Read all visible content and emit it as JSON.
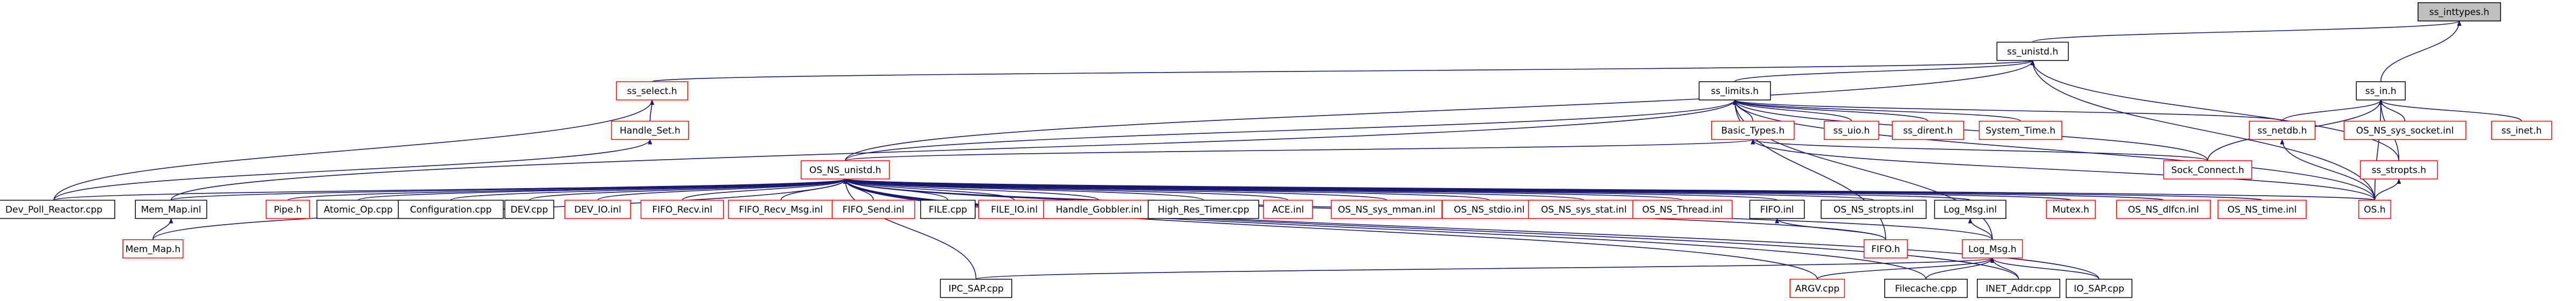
{
  "nodes": [
    {
      "label": "ss_inttypes.h"
    },
    {
      "label": "ss_unistd.h"
    },
    {
      "label": "ss_in.h"
    },
    {
      "label": "ss_select.h"
    },
    {
      "label": "ss_limits.h"
    },
    {
      "label": "Handle_Set.h"
    },
    {
      "label": "Basic_Types.h"
    },
    {
      "label": "ss_uio.h"
    },
    {
      "label": "ss_dirent.h"
    },
    {
      "label": "System_Time.h"
    },
    {
      "label": "ss_netdb.h"
    },
    {
      "label": "OS_NS_sys_socket.inl"
    },
    {
      "label": "ss_inet.h"
    },
    {
      "label": "OS_NS_unistd.h"
    },
    {
      "label": "Sock_Connect.h"
    },
    {
      "label": "ss_stropts.h"
    },
    {
      "label": "Dev_Poll_Reactor.cpp"
    },
    {
      "label": "Mem_Map.inl"
    },
    {
      "label": "Pipe.h"
    },
    {
      "label": "Atomic_Op.cpp"
    },
    {
      "label": "Configuration.cpp"
    },
    {
      "label": "DEV.cpp"
    },
    {
      "label": "DEV_IO.inl"
    },
    {
      "label": "FIFO_Recv.inl"
    },
    {
      "label": "FIFO_Recv_Msg.inl"
    },
    {
      "label": "FIFO_Send.inl"
    },
    {
      "label": "FILE.cpp"
    },
    {
      "label": "FILE_IO.inl"
    },
    {
      "label": "Handle_Gobbler.inl"
    },
    {
      "label": "High_Res_Timer.cpp"
    },
    {
      "label": "ACE.inl"
    },
    {
      "label": "OS_NS_sys_mman.inl"
    },
    {
      "label": "OS_NS_stdio.inl"
    },
    {
      "label": "OS_NS_sys_stat.inl"
    },
    {
      "label": "OS_NS_Thread.inl"
    },
    {
      "label": "FIFO.inl"
    },
    {
      "label": "OS_NS_stropts.inl"
    },
    {
      "label": "Log_Msg.inl"
    },
    {
      "label": "Mutex.h"
    },
    {
      "label": "OS_NS_dlfcn.inl"
    },
    {
      "label": "OS_NS_time.inl"
    },
    {
      "label": "OS.h"
    },
    {
      "label": "Mem_Map.h"
    },
    {
      "label": "FIFO.h"
    },
    {
      "label": "Log_Msg.h"
    },
    {
      "label": "IPC_SAP.cpp"
    },
    {
      "label": "ARGV.cpp"
    },
    {
      "label": "Filecache.cpp"
    },
    {
      "label": "INET_Addr.cpp"
    },
    {
      "label": "IO_SAP.cpp"
    }
  ]
}
